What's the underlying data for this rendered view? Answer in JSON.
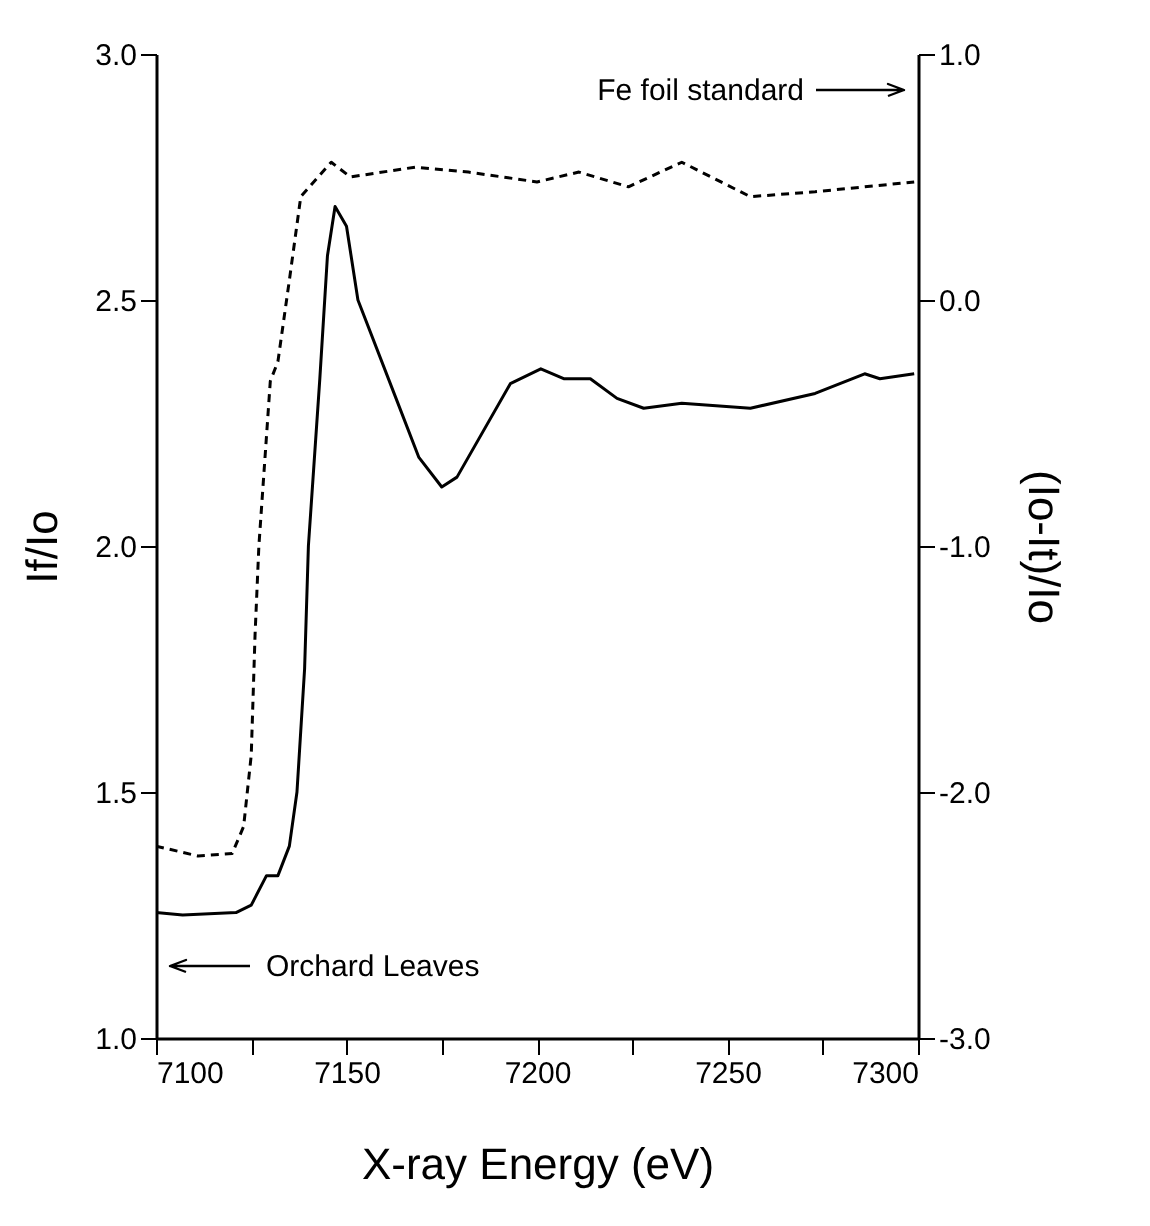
{
  "chart_data": {
    "type": "line",
    "xlabel": "X-ray Energy (eV)",
    "ylabel": "If/Io",
    "y2label": "(Io-It)/Io",
    "xlim": [
      7100,
      7300
    ],
    "xticks": [
      7100,
      {
        "value": 7125,
        "label": null
      },
      7150,
      {
        "value": 7175,
        "label": null
      },
      7200,
      {
        "value": 7225,
        "label": null
      },
      7250,
      {
        "value": 7275,
        "label": null
      },
      7300
    ],
    "ylim": [
      1.0,
      3.0
    ],
    "yticks": [
      {
        "value": 1,
        "label": "1.0"
      },
      {
        "value": 1.5,
        "label": "1.5"
      },
      {
        "value": 2,
        "label": "2.0"
      },
      {
        "value": 2.5,
        "label": "2.5"
      },
      {
        "value": 3,
        "label": "3.0"
      }
    ],
    "y2lim": [
      -3.0,
      1.0
    ],
    "y2ticks": [
      {
        "value": -3,
        "label": "-3.0"
      },
      {
        "value": -2,
        "label": "-2.0"
      },
      {
        "value": -1,
        "label": "-1.0"
      },
      {
        "value": 0,
        "label": "0.0"
      },
      {
        "value": 1,
        "label": "1.0"
      }
    ],
    "grid": false,
    "marker": "none",
    "annotations": [
      "Fe foil standard",
      "Orchard Leaves"
    ],
    "series": [
      {
        "color": "#000000",
        "line_style": "solid",
        "x": [
          7100,
          7107,
          7121,
          7125,
          7129,
          7132,
          7135,
          7137,
          7139,
          7140,
          7143,
          7145,
          7147,
          7150,
          7153,
          7163,
          7169,
          7175,
          7179,
          7193,
          7201,
          7207,
          7214,
          7221,
          7228,
          7238,
          7256,
          7273,
          7286,
          7290,
          7299
        ],
        "values": [
          1.255,
          1.25,
          1.255,
          1.27,
          1.33,
          1.33,
          1.39,
          1.5,
          1.75,
          2.0,
          2.34,
          2.59,
          2.69,
          2.65,
          2.5,
          2.3,
          2.18,
          2.12,
          2.14,
          2.33,
          2.36,
          2.34,
          2.34,
          2.3,
          2.28,
          2.29,
          2.28,
          2.31,
          2.35,
          2.34,
          2.35
        ]
      },
      {
        "color": "#000000",
        "line_style": "dashed",
        "axis": "y2",
        "x": [
          7100,
          7111,
          7120,
          7123,
          7125,
          7126,
          7127,
          7130,
          7132,
          7135,
          7138,
          7146,
          7151,
          7168,
          7182,
          7200,
          7211,
          7224,
          7238,
          7256,
          7273,
          7299
        ],
        "values": [
          -2.22,
          -2.26,
          -2.25,
          -2.14,
          -1.85,
          -1.36,
          -1.0,
          -0.33,
          -0.25,
          0.08,
          0.42,
          0.56,
          0.5,
          0.54,
          0.52,
          0.48,
          0.52,
          0.46,
          0.56,
          0.42,
          0.44,
          0.48
        ]
      }
    ]
  }
}
